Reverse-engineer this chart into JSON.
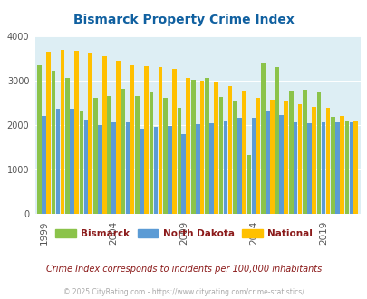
{
  "title": "Bismarck Property Crime Index",
  "years": [
    1999,
    2000,
    2001,
    2002,
    2003,
    2004,
    2005,
    2006,
    2007,
    2008,
    2009,
    2010,
    2011,
    2012,
    2013,
    2014,
    2015,
    2016,
    2017,
    2018,
    2019,
    2020,
    2021
  ],
  "bismarck": [
    3350,
    3220,
    3050,
    2300,
    2600,
    2650,
    2820,
    2650,
    2750,
    2600,
    2380,
    3020,
    3050,
    2630,
    2530,
    1320,
    3380,
    3290,
    2760,
    2780,
    2750,
    2170,
    2090
  ],
  "north_dakota": [
    2200,
    2360,
    2360,
    2120,
    1990,
    2060,
    2060,
    1920,
    1950,
    1980,
    1800,
    2010,
    2040,
    2080,
    2160,
    2160,
    2310,
    2220,
    2060,
    2030,
    2050,
    2060,
    2050
  ],
  "national": [
    3640,
    3680,
    3660,
    3610,
    3550,
    3450,
    3350,
    3310,
    3300,
    3250,
    3060,
    2990,
    2970,
    2880,
    2770,
    2600,
    2560,
    2530,
    2460,
    2410,
    2380,
    2190,
    2100
  ],
  "color_bismarck": "#8bc34a",
  "color_nd": "#5b9bd5",
  "color_national": "#ffc000",
  "bg_color": "#ddeef4",
  "title_color": "#1060a0",
  "title_fontsize": 10,
  "legend_text_color": "#8b1a1a",
  "note_text": "Crime Index corresponds to incidents per 100,000 inhabitants",
  "note_color": "#8b1a1a",
  "footer_text": "© 2025 CityRating.com - https://www.cityrating.com/crime-statistics/",
  "footer_color": "#aaaaaa",
  "ylim": [
    0,
    4000
  ],
  "yticks": [
    0,
    1000,
    2000,
    3000,
    4000
  ],
  "xtick_years": [
    1999,
    2004,
    2009,
    2014,
    2019
  ],
  "legend_labels": [
    "Bismarck",
    "North Dakota",
    "National"
  ]
}
